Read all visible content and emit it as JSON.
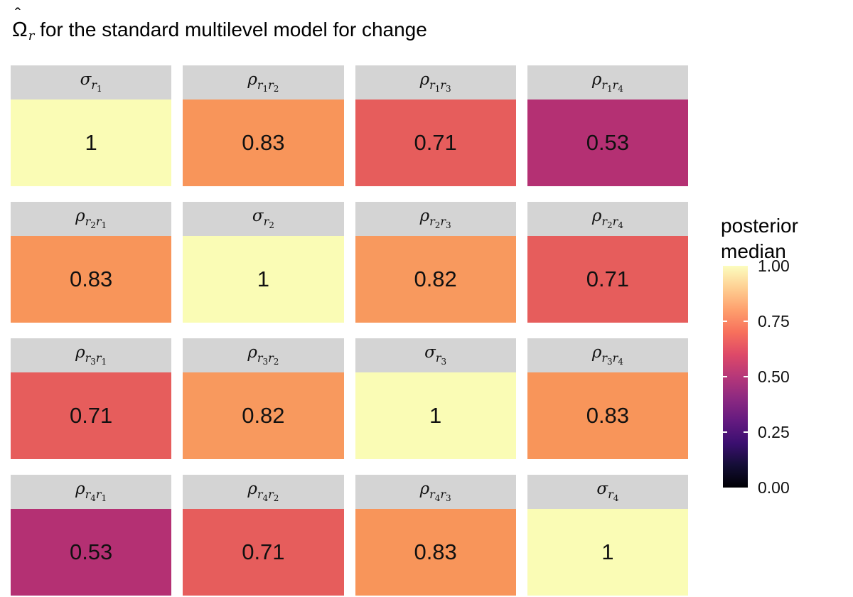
{
  "title": {
    "hat": "ˆ",
    "omega": "Ω",
    "sub": "r",
    "rest": " for the standard multilevel model for change"
  },
  "chart_data": {
    "type": "heatmap",
    "title": "Omega-hat_r for the standard multilevel model for change",
    "index_letter": "r",
    "strip_color": "#D4D4D4",
    "rows": [
      "r1",
      "r2",
      "r3",
      "r4"
    ],
    "cols": [
      "r1",
      "r2",
      "r3",
      "r4"
    ],
    "values_matrix": [
      [
        1.0,
        0.83,
        0.71,
        0.53
      ],
      [
        0.83,
        1.0,
        0.82,
        0.71
      ],
      [
        0.71,
        0.82,
        1.0,
        0.83
      ],
      [
        0.53,
        0.71,
        0.83,
        1.0
      ]
    ],
    "panels": [
      {
        "symbol": "σ",
        "indices": [
          "1"
        ],
        "value": "1",
        "color": "#FAFCB5"
      },
      {
        "symbol": "ρ",
        "indices": [
          "1",
          "2"
        ],
        "value": "0.83",
        "color": "#F8955A"
      },
      {
        "symbol": "ρ",
        "indices": [
          "1",
          "3"
        ],
        "value": "0.71",
        "color": "#E65D5C"
      },
      {
        "symbol": "ρ",
        "indices": [
          "1",
          "4"
        ],
        "value": "0.53",
        "color": "#B43073"
      },
      {
        "symbol": "ρ",
        "indices": [
          "2",
          "1"
        ],
        "value": "0.83",
        "color": "#F8955A"
      },
      {
        "symbol": "σ",
        "indices": [
          "2"
        ],
        "value": "1",
        "color": "#FAFCB5"
      },
      {
        "symbol": "ρ",
        "indices": [
          "2",
          "3"
        ],
        "value": "0.82",
        "color": "#F8995E"
      },
      {
        "symbol": "ρ",
        "indices": [
          "2",
          "4"
        ],
        "value": "0.71",
        "color": "#E65D5C"
      },
      {
        "symbol": "ρ",
        "indices": [
          "3",
          "1"
        ],
        "value": "0.71",
        "color": "#E65D5C"
      },
      {
        "symbol": "ρ",
        "indices": [
          "3",
          "2"
        ],
        "value": "0.82",
        "color": "#F8995E"
      },
      {
        "symbol": "σ",
        "indices": [
          "3"
        ],
        "value": "1",
        "color": "#FAFCB5"
      },
      {
        "symbol": "ρ",
        "indices": [
          "3",
          "4"
        ],
        "value": "0.83",
        "color": "#F8955A"
      },
      {
        "symbol": "ρ",
        "indices": [
          "4",
          "1"
        ],
        "value": "0.53",
        "color": "#B43073"
      },
      {
        "symbol": "ρ",
        "indices": [
          "4",
          "2"
        ],
        "value": "0.71",
        "color": "#E65D5C"
      },
      {
        "symbol": "ρ",
        "indices": [
          "4",
          "3"
        ],
        "value": "0.83",
        "color": "#F8955A"
      },
      {
        "symbol": "σ",
        "indices": [
          "4"
        ],
        "value": "1",
        "color": "#FAFCB5"
      }
    ],
    "legend": {
      "title_lines": [
        "posterior",
        "median"
      ],
      "ticks": [
        "1.00",
        "0.75",
        "0.50",
        "0.25",
        "0.00"
      ],
      "range": [
        0,
        1
      ],
      "gradient": [
        {
          "pos": 0.0,
          "color": "#FCFDBF"
        },
        {
          "pos": 0.1,
          "color": "#FECF92"
        },
        {
          "pos": 0.2,
          "color": "#FE9F6D"
        },
        {
          "pos": 0.3,
          "color": "#F7705C"
        },
        {
          "pos": 0.4,
          "color": "#DE4968"
        },
        {
          "pos": 0.5,
          "color": "#B63779"
        },
        {
          "pos": 0.6,
          "color": "#8C2981"
        },
        {
          "pos": 0.7,
          "color": "#641A80"
        },
        {
          "pos": 0.8,
          "color": "#3B0F70"
        },
        {
          "pos": 0.9,
          "color": "#140E36"
        },
        {
          "pos": 1.0,
          "color": "#000004"
        }
      ]
    }
  }
}
